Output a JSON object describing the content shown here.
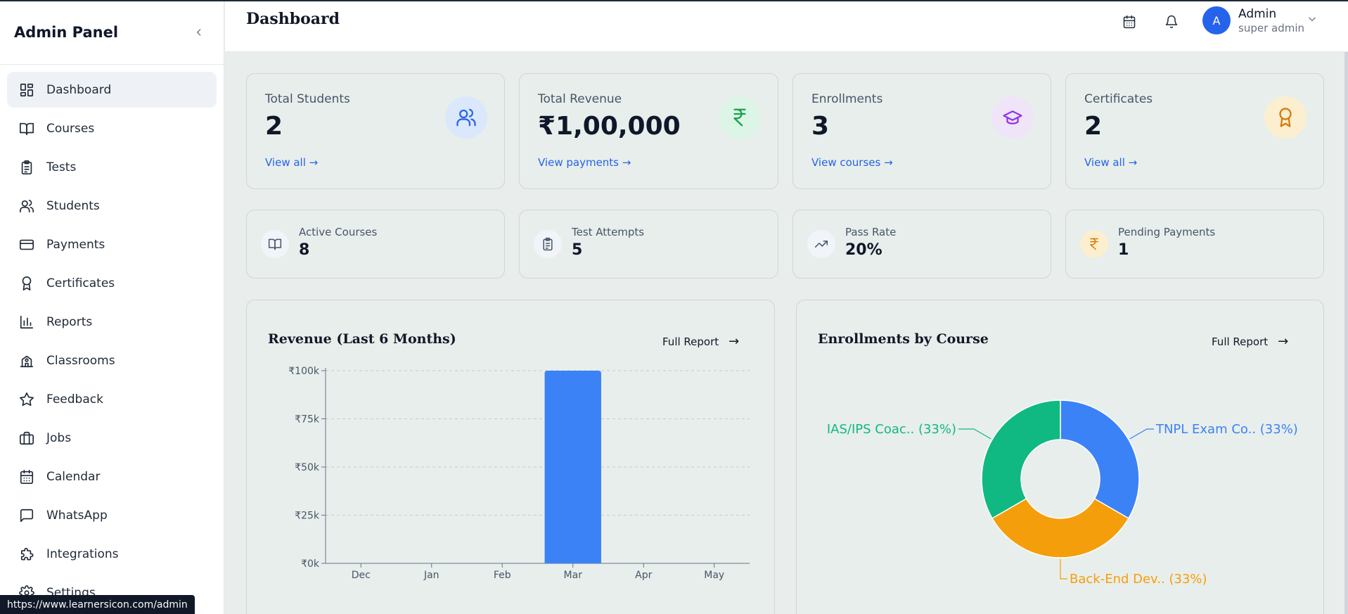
{
  "sidebar": {
    "title": "Admin Panel",
    "items": [
      {
        "label": "Dashboard",
        "icon": "dashboard-icon",
        "active": true
      },
      {
        "label": "Courses",
        "icon": "book-icon"
      },
      {
        "label": "Tests",
        "icon": "clipboard-icon"
      },
      {
        "label": "Students",
        "icon": "users-icon"
      },
      {
        "label": "Payments",
        "icon": "credit-card-icon"
      },
      {
        "label": "Certificates",
        "icon": "award-icon"
      },
      {
        "label": "Reports",
        "icon": "bar-chart-icon"
      },
      {
        "label": "Classrooms",
        "icon": "school-icon"
      },
      {
        "label": "Feedback",
        "icon": "star-icon"
      },
      {
        "label": "Jobs",
        "icon": "briefcase-icon"
      },
      {
        "label": "Calendar",
        "icon": "calendar-icon"
      },
      {
        "label": "WhatsApp",
        "icon": "message-icon"
      },
      {
        "label": "Integrations",
        "icon": "puzzle-icon"
      },
      {
        "label": "Settings",
        "icon": "settings-icon"
      }
    ]
  },
  "status_url": "https://www.learnersicon.com/admin",
  "header": {
    "title": "Dashboard",
    "user": {
      "initial": "A",
      "name": "Admin",
      "role": "super admin"
    }
  },
  "stats": [
    {
      "label": "Total Students",
      "value": "2",
      "link": "View all",
      "icon": "users-icon",
      "bg": "#dbe7fb",
      "fg": "#2563eb"
    },
    {
      "label": "Total Revenue",
      "value": "₹1,00,000",
      "link": "View payments",
      "icon": "rupee-icon",
      "bg": "#dcf5e6",
      "fg": "#16a34a"
    },
    {
      "label": "Enrollments",
      "value": "3",
      "link": "View courses",
      "icon": "graduation-cap-icon",
      "bg": "#efe4f8",
      "fg": "#9333ea"
    },
    {
      "label": "Certificates",
      "value": "2",
      "link": "View all",
      "icon": "award-icon",
      "bg": "#fbefcf",
      "fg": "#d97706"
    }
  ],
  "mini_stats": [
    {
      "label": "Active Courses",
      "value": "8",
      "icon": "book-icon"
    },
    {
      "label": "Test Attempts",
      "value": "5",
      "icon": "clipboard-icon"
    },
    {
      "label": "Pass Rate",
      "value": "20%",
      "icon": "trending-up-icon"
    },
    {
      "label": "Pending Payments",
      "value": "1",
      "icon": "rupee-icon"
    }
  ],
  "revenue_panel": {
    "title": "Revenue (Last 6 Months)",
    "action": "Full Report"
  },
  "enroll_panel": {
    "title": "Enrollments by Course",
    "action": "Full Report"
  },
  "chart_data": [
    {
      "type": "bar",
      "title": "Revenue (Last 6 Months)",
      "categories": [
        "Dec",
        "Jan",
        "Feb",
        "Mar",
        "Apr",
        "May"
      ],
      "values": [
        0,
        0,
        0,
        100000,
        0,
        0
      ],
      "ylim": [
        0,
        100000
      ],
      "yticks": [
        "₹0k",
        "₹25k",
        "₹50k",
        "₹75k",
        "₹100k"
      ],
      "grid": true,
      "color": "#3b82f6"
    },
    {
      "type": "pie",
      "title": "Enrollments by Course",
      "slices": [
        {
          "label": "TNPL Exam Co.. (33%)",
          "value": 33.33,
          "color": "#3b82f6"
        },
        {
          "label": "Back-End Dev.. (33%)",
          "value": 33.33,
          "color": "#f59e0b"
        },
        {
          "label": "IAS/IPS Coac.. (33%)",
          "value": 33.33,
          "color": "#10b981"
        }
      ]
    }
  ]
}
